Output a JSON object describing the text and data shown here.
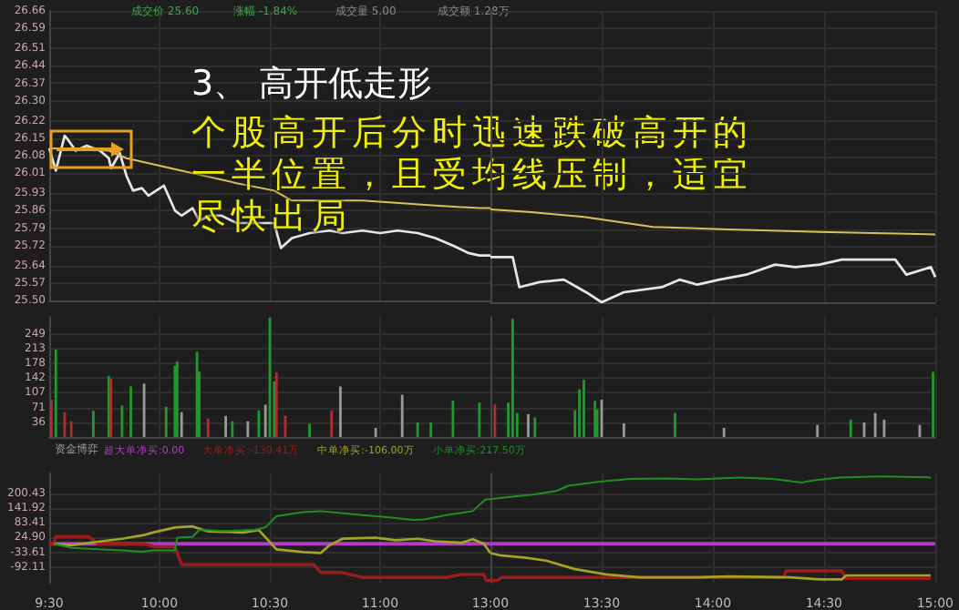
{
  "chart_data": [
    {
      "type": "line",
      "title": "3、 高开低走形",
      "subtitle": "个股高开后分时迅速跌破高开的一半位置，且受均线压制，适宜尽快出局",
      "annotations": [
        "成交价 25.60",
        "涨幅 -1.84%",
        "成交量 5.00",
        "成交额 1.28万"
      ],
      "xlim": [
        9.5,
        11.5
      ],
      "xticks": [
        9.5,
        10,
        10.5,
        11
      ],
      "ylim": [
        25.5,
        26.66
      ],
      "yticks": [
        26.66,
        26.59,
        26.51,
        26.44,
        26.37,
        {
          "value": 26.3,
          "label": "26.30"
        },
        26.22,
        26.15,
        26.08,
        26.01,
        25.93,
        25.86,
        25.79,
        25.72,
        25.64,
        25.57,
        {
          "value": 25.5,
          "label": "25.50"
        }
      ],
      "grid": true,
      "tick_labels": "y",
      "marker": "none",
      "line_style": "solid",
      "series": [
        {
          "color": "#e6e6e6",
          "x": [
            9.5,
            9.53,
            9.57,
            9.58,
            9.62,
            9.67,
            9.73,
            9.77,
            9.78,
            9.82,
            9.85,
            9.88,
            9.92,
            9.95,
            10.02,
            10.07,
            10.1,
            10.15,
            10.18,
            10.23,
            10.28,
            10.35,
            10.43,
            10.52,
            10.55,
            10.6,
            10.68,
            10.77,
            10.83,
            10.92,
            11,
            11.08,
            11.17,
            11.25,
            11.33,
            11.4,
            11.45,
            11.5
          ],
          "values": [
            26.11,
            26.02,
            26.16,
            26.15,
            26.1,
            26.12,
            26.1,
            26.07,
            26.03,
            26.09,
            26.0,
            25.94,
            25.95,
            25.92,
            25.96,
            25.86,
            25.84,
            25.87,
            25.82,
            25.84,
            25.84,
            25.81,
            25.81,
            25.81,
            25.71,
            25.75,
            25.77,
            25.78,
            25.77,
            25.78,
            25.77,
            25.78,
            25.77,
            25.75,
            25.72,
            25.69,
            25.68,
            25.68
          ]
        },
        {
          "color": "#d8c25a",
          "x": [
            9.5,
            9.77,
            9.85,
            10.1,
            10.35,
            10.52,
            10.6,
            10.92,
            11.25,
            11.45,
            11.5
          ],
          "values": [
            26.11,
            26.1,
            26.07,
            26.02,
            25.97,
            25.94,
            25.9,
            25.9,
            25.88,
            25.87,
            25.87
          ]
        }
      ]
    },
    {
      "type": "line",
      "xlim": [
        13,
        15
      ],
      "xticks": [
        13,
        13.5,
        14,
        14.5,
        15
      ],
      "ylim": [
        25.5,
        26.66
      ],
      "yticks": [
        26.66,
        26.59,
        26.51,
        26.44,
        26.37,
        26.3,
        26.22,
        26.15,
        26.08,
        26.01,
        25.93,
        25.86,
        25.79,
        25.72,
        25.64,
        25.57,
        25.5
      ],
      "grid": true,
      "tick_labels": false,
      "marker": "none",
      "line_style": "solid",
      "series": [
        {
          "color": "#e6e6e6",
          "x": [
            13,
            13.1,
            13.13,
            13.22,
            13.33,
            13.43,
            13.5,
            13.6,
            13.77,
            13.85,
            13.93,
            14.03,
            14.15,
            14.28,
            14.37,
            14.48,
            14.58,
            14.82,
            14.87,
            14.98,
            15
          ],
          "values": [
            25.68,
            25.68,
            25.56,
            25.58,
            25.59,
            25.54,
            25.5,
            25.54,
            25.56,
            25.59,
            25.57,
            25.59,
            25.61,
            25.65,
            25.64,
            25.65,
            25.67,
            25.67,
            25.61,
            25.64,
            25.6
          ]
        },
        {
          "color": "#d8c25a",
          "x": [
            13,
            13.17,
            13.42,
            13.73,
            14.07,
            14.48,
            15
          ],
          "values": [
            25.87,
            25.86,
            25.84,
            25.8,
            25.79,
            25.78,
            25.77
          ]
        }
      ]
    },
    {
      "type": "bar",
      "xlim": [
        9.5,
        11.5
      ],
      "xticks": [
        9.5,
        10,
        10.5,
        11
      ],
      "ylim": [
        0,
        290
      ],
      "yticks": [
        36,
        71,
        107,
        142,
        178,
        213,
        249
      ],
      "grid": true,
      "tick_labels": "y",
      "x": [
        9.51,
        9.53,
        9.57,
        9.6,
        9.7,
        9.77,
        9.78,
        9.83,
        9.87,
        9.93,
        10.03,
        10.07,
        10.08,
        10.1,
        10.17,
        10.18,
        10.22,
        10.3,
        10.33,
        10.4,
        10.45,
        10.48,
        10.5,
        10.52,
        10.53,
        10.57,
        10.68,
        10.78,
        10.82,
        10.98,
        11.1,
        11.17,
        11.23,
        11.33,
        11.45
      ],
      "values": [
        90,
        211,
        60,
        38,
        63,
        147,
        140,
        76,
        122,
        129,
        73,
        172,
        182,
        60,
        206,
        158,
        45,
        51,
        38,
        38,
        64,
        78,
        288,
        134,
        156,
        51,
        32,
        64,
        122,
        22,
        102,
        35,
        35,
        88,
        83
      ],
      "colors": [
        "#b52a2a",
        "#1f9a2e",
        "#b52a2a",
        "#b52a2a",
        "#1f9a2e",
        "#1f9a2e",
        "#b52a2a",
        "#1f9a2e",
        "#1f9a2e",
        "#9a9a9a",
        "#1f9a2e",
        "#1f9a2e",
        "#1f9a2e",
        "#9a9a9a",
        "#1f9a2e",
        "#1f9a2e",
        "#b52a2a",
        "#9a9a9a",
        "#1f9a2e",
        "#9a9a9a",
        "#1f9a2e",
        "#9a9a9a",
        "#1f9a2e",
        "#1f9a2e",
        "#b52a2a",
        "#b52a2a",
        "#1f9a2e",
        "#b52a2a",
        "#9a9a9a",
        "#9a9a9a",
        "#9a9a9a",
        "#1f9a2e",
        "#1f9a2e",
        "#1f9a2e",
        "#1f9a2e"
      ]
    },
    {
      "type": "bar",
      "xlim": [
        13,
        15
      ],
      "xticks": [
        13,
        13.5,
        14,
        14.5,
        15
      ],
      "ylim": [
        0,
        290
      ],
      "yticks": [
        36,
        71,
        107,
        142,
        178,
        213,
        249
      ],
      "grid": true,
      "tick_labels": false,
      "x": [
        13.02,
        13.08,
        13.1,
        13.12,
        13.17,
        13.2,
        13.38,
        13.4,
        13.42,
        13.47,
        13.48,
        13.5,
        13.6,
        13.83,
        14.05,
        14.47,
        14.62,
        14.68,
        14.73,
        14.77,
        14.93,
        14.99
      ],
      "values": [
        79,
        83,
        285,
        58,
        55,
        47,
        65,
        115,
        138,
        87,
        67,
        90,
        33,
        58,
        22,
        29,
        42,
        35,
        58,
        42,
        29,
        157
      ],
      "colors": [
        "#b52a2a",
        "#1f9a2e",
        "#1f9a2e",
        "#1f9a2e",
        "#9a9a9a",
        "#1f9a2e",
        "#1f9a2e",
        "#1f9a2e",
        "#1f9a2e",
        "#1f9a2e",
        "#1f9a2e",
        "#9a9a9a",
        "#9a9a9a",
        "#1f9a2e",
        "#9a9a9a",
        "#9a9a9a",
        "#1f9a2e",
        "#9a9a9a",
        "#9a9a9a",
        "#9a9a9a",
        "#9a9a9a",
        "#1f9a2e"
      ]
    },
    {
      "type": "line",
      "legend_title": "资金博弈",
      "legend": "top",
      "xlim": [
        9.5,
        11.5
      ],
      "xticks": [
        {
          "value": 9.5,
          "label": "9:30"
        },
        {
          "value": 10,
          "label": "10:00"
        },
        {
          "value": 10.5,
          "label": "10:30"
        },
        {
          "value": 11,
          "label": "11:00"
        }
      ],
      "ylim": [
        -155,
        280
      ],
      "yticks": [
        200.43,
        141.92,
        83.41,
        {
          "value": 24.9,
          "label": "24.90"
        },
        -33.61,
        -92.11
      ],
      "grid": true,
      "marker": "none",
      "line_style": "solid",
      "series": [
        {
          "name": "超大单净买:0.00",
          "color": "#b23cc8",
          "x": [
            9.5,
            11.5
          ],
          "values": [
            0,
            0
          ]
        },
        {
          "name": "大单净买:-130.41万",
          "color": "#a01c1c",
          "x": [
            9.5,
            9.52,
            9.53,
            9.68,
            9.72,
            9.93,
            9.98,
            10.07,
            10.1,
            10.18,
            10.7,
            10.73,
            10.82,
            10.92,
            11.3,
            11.37,
            11.47,
            11.48,
            11.5
          ],
          "values": [
            0,
            0,
            28,
            28,
            0,
            0,
            -12,
            -12,
            -83,
            -83,
            -83,
            -114,
            -114,
            -134,
            -134,
            -122,
            -122,
            -146,
            -146
          ]
        },
        {
          "name": "中单净买:-106.00万",
          "color": "#a3a324",
          "x": [
            9.52,
            9.6,
            9.72,
            9.83,
            9.93,
            9.97,
            10.07,
            10.15,
            10.22,
            10.38,
            10.45,
            10.53,
            10.65,
            10.73,
            10.77,
            10.83,
            10.98,
            11.07,
            11.17,
            11.25,
            11.37,
            11.42,
            11.47,
            11.5
          ],
          "values": [
            0,
            -6,
            8,
            20,
            35,
            45,
            65,
            69,
            49,
            45,
            55,
            -22,
            -33,
            -37,
            -6,
            20,
            24,
            14,
            20,
            10,
            4,
            18,
            0,
            -37
          ]
        },
        {
          "name": "小单净买:217.50万",
          "color": "#1f8f24",
          "x": [
            9.52,
            9.6,
            9.72,
            9.83,
            9.92,
            9.97,
            10.07,
            10.08,
            10.15,
            10.18,
            10.3,
            10.43,
            10.48,
            10.53,
            10.65,
            10.73,
            10.82,
            10.92,
            11.03,
            11.15,
            11.2,
            11.3,
            11.42,
            11.47,
            11.48,
            11.5
          ],
          "values": [
            0,
            -16,
            -22,
            -26,
            -32,
            -26,
            -26,
            24,
            28,
            55,
            51,
            55,
            65,
            110,
            126,
            130,
            122,
            114,
            106,
            95,
            97,
            114,
            130,
            171,
            177,
            178
          ]
        }
      ]
    },
    {
      "type": "line",
      "xlim": [
        13,
        15
      ],
      "xticks": [
        {
          "value": 13,
          "label": "13:00"
        },
        {
          "value": 13.5,
          "label": "13:30"
        },
        {
          "value": 14,
          "label": "14:00"
        },
        {
          "value": 14.5,
          "label": "14:30"
        },
        {
          "value": 15,
          "label": "15:00"
        }
      ],
      "ylim": [
        -155,
        280
      ],
      "yticks": [
        200.43,
        141.92,
        83.41,
        24.9,
        -33.61,
        -92.11
      ],
      "grid": true,
      "tick_labels": "x",
      "marker": "none",
      "line_style": "solid",
      "series": [
        {
          "color": "#b23cc8",
          "x": [
            13,
            15
          ],
          "values": [
            0,
            0
          ]
        },
        {
          "color": "#a01c1c",
          "x": [
            13,
            13.03,
            13.05,
            13.68,
            14.32,
            14.33,
            14.58,
            14.6,
            14.98
          ],
          "values": [
            -146,
            -146,
            -134,
            -134,
            -134,
            -108,
            -108,
            -138,
            -138
          ]
        },
        {
          "color": "#a3a324",
          "x": [
            13,
            13.05,
            13.17,
            13.25,
            13.38,
            13.52,
            13.67,
            13.93,
            14.07,
            14.35,
            14.48,
            14.58,
            14.6,
            14.98
          ],
          "values": [
            -37,
            -47,
            -57,
            -67,
            -101,
            -122,
            -134,
            -134,
            -130,
            -134,
            -142,
            -142,
            -126,
            -126
          ]
        },
        {
          "color": "#1f8f24",
          "x": [
            13,
            13.05,
            13.2,
            13.3,
            13.35,
            13.5,
            13.63,
            13.8,
            13.93,
            14.12,
            14.27,
            14.4,
            14.45,
            14.57,
            14.75,
            14.98
          ],
          "values": [
            178,
            183,
            197,
            211,
            231,
            248,
            258,
            260,
            256,
            264,
            258,
            244,
            252,
            264,
            268,
            264
          ]
        }
      ]
    }
  ]
}
